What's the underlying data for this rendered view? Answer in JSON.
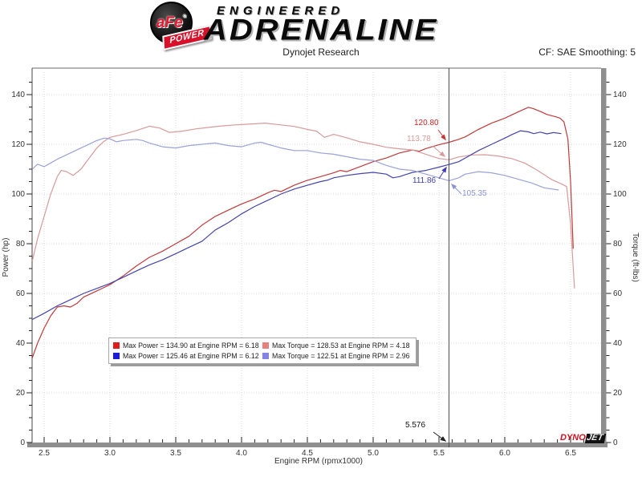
{
  "header": {
    "logo": {
      "badge_main": "aFe",
      "badge_reg": "®",
      "badge_banner": "POWER",
      "line1": "ENGINEERED",
      "line2": "ADRENALINE"
    },
    "title": "Dynojet Research",
    "correction": "CF: SAE Smoothing: 5"
  },
  "chart_data": {
    "type": "line",
    "title": "Dynojet Research",
    "xlabel": "Engine RPM (rpmx1000)",
    "ylabel_left": "Power (hp)",
    "ylabel_right": "Torque (ft-lbs)",
    "xlim": [
      2.41,
      6.74
    ],
    "ylim": [
      0,
      151
    ],
    "x_ticks": [
      "2.5",
      "3.0",
      "3.5",
      "4.0",
      "4.5",
      "5.0",
      "5.5",
      "6.0",
      "6.5"
    ],
    "y_ticks": [
      0,
      20,
      40,
      60,
      80,
      100,
      120,
      140
    ],
    "grid": true,
    "legend_position": "bottom-center",
    "cursor": {
      "rpm": 5.576,
      "rpm_label": "5.576",
      "labels": {
        "power_afe": "120.80",
        "torque_afe": "113.78",
        "power_stock": "111.86",
        "torque_stock": "105.35"
      }
    },
    "series": [
      {
        "id": "power-afe",
        "name": "Max Power = 134.90 at Engine RPM = 6.18",
        "color": "#c03a3a",
        "swatch": "#e11b1b",
        "axis": "power",
        "x": [
          2.41,
          2.45,
          2.5,
          2.55,
          2.6,
          2.65,
          2.7,
          2.75,
          2.8,
          2.9,
          3.0,
          3.1,
          3.2,
          3.3,
          3.4,
          3.5,
          3.6,
          3.7,
          3.8,
          3.9,
          4.0,
          4.1,
          4.2,
          4.25,
          4.3,
          4.4,
          4.5,
          4.6,
          4.7,
          4.75,
          4.8,
          4.9,
          5.0,
          5.1,
          5.2,
          5.3,
          5.35,
          5.4,
          5.5,
          5.576,
          5.65,
          5.7,
          5.8,
          5.9,
          6.0,
          6.1,
          6.18,
          6.22,
          6.28,
          6.32,
          6.38,
          6.42,
          6.45,
          6.48,
          6.5,
          6.52
        ],
        "y": [
          34,
          40,
          46,
          51,
          54.5,
          55,
          54.5,
          56,
          58.5,
          61,
          63.5,
          67,
          71,
          74.5,
          77,
          80,
          83,
          87.5,
          91,
          93.5,
          96,
          98,
          100.5,
          101.5,
          101,
          103.5,
          105.5,
          107,
          108.5,
          109.5,
          109,
          111,
          113,
          114.5,
          116.5,
          117.7,
          117.2,
          118.3,
          119.8,
          120.8,
          122,
          123,
          126,
          128.5,
          130.5,
          133,
          134.9,
          134.3,
          133,
          132,
          131.2,
          130.5,
          129,
          122,
          105,
          78
        ]
      },
      {
        "id": "torque-afe",
        "name": "Max Torque = 128.53 at Engine RPM = 4.18",
        "color": "#d89a9a",
        "swatch": "#e87f7f",
        "axis": "torque",
        "x": [
          2.41,
          2.45,
          2.5,
          2.55,
          2.6,
          2.63,
          2.67,
          2.72,
          2.78,
          2.85,
          2.9,
          2.95,
          3.0,
          3.1,
          3.2,
          3.3,
          3.38,
          3.45,
          3.55,
          3.65,
          3.75,
          3.85,
          3.95,
          4.05,
          4.18,
          4.3,
          4.4,
          4.5,
          4.57,
          4.63,
          4.7,
          4.8,
          4.9,
          5.0,
          5.1,
          5.2,
          5.3,
          5.4,
          5.5,
          5.576,
          5.65,
          5.75,
          5.85,
          5.95,
          6.05,
          6.15,
          6.25,
          6.35,
          6.42,
          6.47,
          6.5,
          6.53
        ],
        "y": [
          73,
          82,
          91,
          100,
          107,
          109.5,
          109,
          107.5,
          110,
          115,
          118.5,
          121,
          122.8,
          124,
          125.5,
          127.3,
          126.5,
          124.8,
          125.3,
          126.2,
          126.8,
          127.4,
          127.8,
          128.1,
          128.53,
          127.8,
          127.2,
          126,
          125.3,
          122.8,
          124,
          122.6,
          121,
          120,
          118.8,
          118.2,
          117.7,
          116,
          114.3,
          113.78,
          114.9,
          115.7,
          115.8,
          115.3,
          114.3,
          112.5,
          109.5,
          106,
          104.3,
          103,
          88,
          62
        ]
      },
      {
        "id": "power-stock",
        "name": "Max Power = 125.46 at Engine RPM = 6.12",
        "color": "#4444ae",
        "swatch": "#1c1ce1",
        "axis": "power",
        "x": [
          2.41,
          2.5,
          2.6,
          2.7,
          2.8,
          2.9,
          3.0,
          3.1,
          3.2,
          3.3,
          3.4,
          3.5,
          3.6,
          3.7,
          3.8,
          3.85,
          3.9,
          4.0,
          4.1,
          4.2,
          4.3,
          4.4,
          4.5,
          4.6,
          4.65,
          4.7,
          4.8,
          4.9,
          5.0,
          5.1,
          5.15,
          5.2,
          5.3,
          5.4,
          5.5,
          5.576,
          5.65,
          5.7,
          5.8,
          5.9,
          6.0,
          6.05,
          6.12,
          6.18,
          6.22,
          6.27,
          6.32,
          6.37,
          6.43
        ],
        "y": [
          49.5,
          52,
          55,
          57.5,
          60,
          62,
          64,
          66.5,
          69,
          71.5,
          73.5,
          76,
          78.5,
          81,
          85.5,
          87,
          88.5,
          92,
          95,
          97.5,
          100,
          102,
          103.5,
          105,
          105.5,
          106.5,
          107.5,
          108.2,
          108.7,
          108,
          106.5,
          107,
          108.7,
          109.5,
          110.8,
          111.86,
          113,
          114.5,
          117.5,
          120,
          122.5,
          123.8,
          125.46,
          125,
          124.3,
          124.9,
          124.2,
          124.7,
          124.3
        ]
      },
      {
        "id": "torque-stock",
        "name": "Max Torque = 122.51 at Engine RPM = 2.96",
        "color": "#9aa2d8",
        "swatch": "#8282e8",
        "axis": "torque",
        "x": [
          2.41,
          2.45,
          2.5,
          2.55,
          2.6,
          2.7,
          2.8,
          2.9,
          2.96,
          3.0,
          3.05,
          3.1,
          3.2,
          3.25,
          3.3,
          3.4,
          3.5,
          3.6,
          3.7,
          3.8,
          3.9,
          4.0,
          4.1,
          4.15,
          4.2,
          4.3,
          4.4,
          4.5,
          4.6,
          4.7,
          4.8,
          4.9,
          5.0,
          5.1,
          5.2,
          5.3,
          5.4,
          5.5,
          5.576,
          5.65,
          5.7,
          5.8,
          5.9,
          6.0,
          6.1,
          6.2,
          6.3,
          6.41
        ],
        "y": [
          110,
          112,
          111,
          112.5,
          114,
          116.5,
          119,
          121.5,
          122.51,
          122.2,
          121,
          121.5,
          122,
          121.5,
          120.5,
          119,
          118.5,
          119.5,
          120,
          120.5,
          119.5,
          119,
          120.5,
          120.8,
          120,
          118.5,
          117.5,
          117.5,
          116.5,
          116,
          115,
          114,
          113.5,
          111.5,
          110,
          109.5,
          108,
          106.5,
          105.35,
          106.5,
          108,
          109,
          108.5,
          107.5,
          106,
          104.5,
          102.5,
          101.6
        ]
      }
    ]
  },
  "footer_logo": {
    "part1": "DYNO",
    "part2": "JET"
  }
}
